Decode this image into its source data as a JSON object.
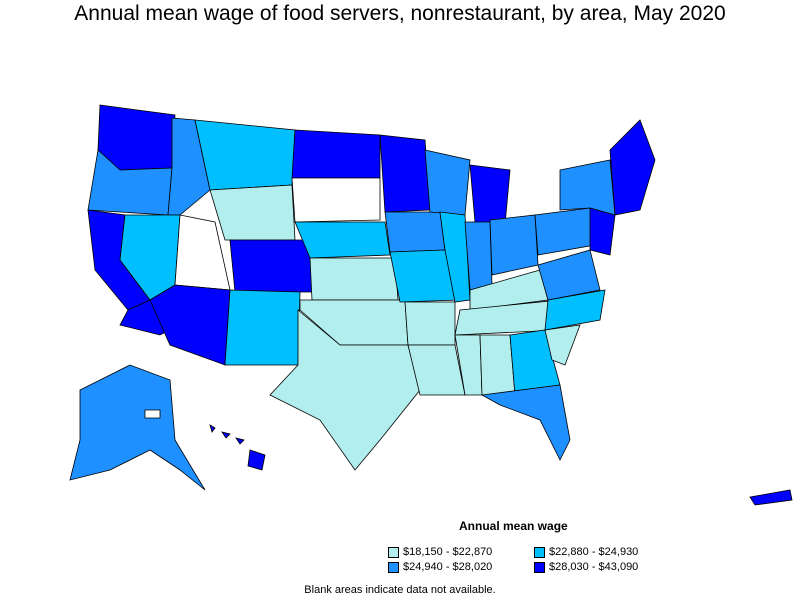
{
  "title": "Annual mean wage of food servers, nonrestaurant, by area, May 2020",
  "legend": {
    "title": "Annual mean wage",
    "items": [
      {
        "label": "$18,150 - $22,870",
        "color": "#b2eeee"
      },
      {
        "label": "$22,880 - $24,930",
        "color": "#00bfff"
      },
      {
        "label": "$24,940 - $28,020",
        "color": "#1e90ff"
      },
      {
        "label": "$28,030 - $43,090",
        "color": "#0000ff"
      }
    ]
  },
  "note": "Blank areas indicate data not available.",
  "colors": {
    "tier1": "#b2eeee",
    "tier2": "#00bfff",
    "tier3": "#1e90ff",
    "tier4": "#0000ff",
    "blank": "#ffffff",
    "border": "#000000"
  }
}
